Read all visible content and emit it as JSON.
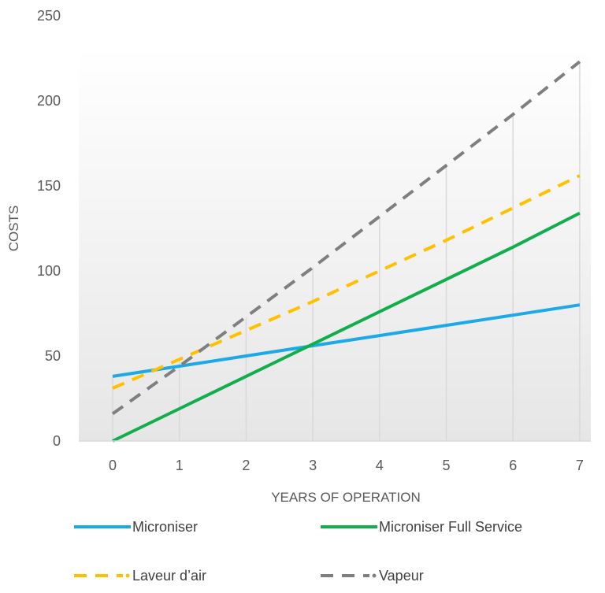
{
  "chart_data": {
    "type": "line",
    "title": "",
    "xlabel": "YEARS OF OPERATION",
    "ylabel": "COSTS",
    "x": [
      0,
      1,
      2,
      3,
      4,
      5,
      6,
      7
    ],
    "xticks": [
      "0",
      "1",
      "2",
      "3",
      "4",
      "5",
      "6",
      "7"
    ],
    "yticks": [
      "0",
      "50",
      "100",
      "150",
      "200",
      "250"
    ],
    "ylim": [
      0,
      250
    ],
    "xlim": [
      0,
      7
    ],
    "grid": "vertical",
    "legend": "bottom",
    "series": [
      {
        "name": "Microniser",
        "color": "#1BA9E8",
        "dash": "solid",
        "values": [
          38,
          44,
          50,
          56,
          62,
          68,
          74,
          80
        ]
      },
      {
        "name": "Microniser Full Service",
        "color": "#12AE4B",
        "dash": "solid",
        "values": [
          0,
          19,
          38,
          57,
          76,
          95,
          114,
          134
        ]
      },
      {
        "name": "Laveur d’air",
        "color": "#FFC000",
        "dash": "dashed",
        "values": [
          31,
          48,
          65,
          82,
          100,
          118,
          137,
          156
        ]
      },
      {
        "name": "Vapeur",
        "color": "#7F7F7F",
        "dash": "dashed",
        "values": [
          16,
          44,
          73,
          102,
          132,
          162,
          192,
          223
        ]
      }
    ]
  }
}
